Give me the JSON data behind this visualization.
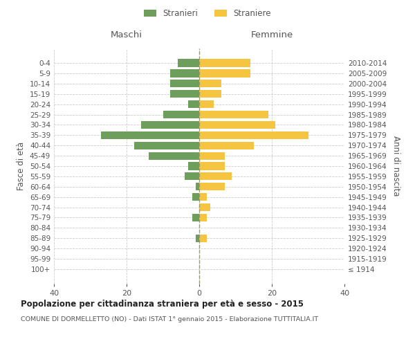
{
  "age_groups": [
    "100+",
    "95-99",
    "90-94",
    "85-89",
    "80-84",
    "75-79",
    "70-74",
    "65-69",
    "60-64",
    "55-59",
    "50-54",
    "45-49",
    "40-44",
    "35-39",
    "30-34",
    "25-29",
    "20-24",
    "15-19",
    "10-14",
    "5-9",
    "0-4"
  ],
  "birth_years": [
    "≤ 1914",
    "1915-1919",
    "1920-1924",
    "1925-1929",
    "1930-1934",
    "1935-1939",
    "1940-1944",
    "1945-1949",
    "1950-1954",
    "1955-1959",
    "1960-1964",
    "1965-1969",
    "1970-1974",
    "1975-1979",
    "1980-1984",
    "1985-1989",
    "1990-1994",
    "1995-1999",
    "2000-2004",
    "2005-2009",
    "2010-2014"
  ],
  "maschi": [
    0,
    0,
    0,
    1,
    0,
    2,
    0,
    2,
    1,
    4,
    3,
    14,
    18,
    27,
    16,
    10,
    3,
    8,
    8,
    8,
    6
  ],
  "femmine": [
    0,
    0,
    0,
    2,
    0,
    2,
    3,
    2,
    7,
    9,
    7,
    7,
    15,
    30,
    21,
    19,
    4,
    6,
    6,
    14,
    14
  ],
  "maschi_color": "#6d9e5c",
  "femmine_color": "#f5c542",
  "bar_height": 0.75,
  "xlim": [
    -40,
    40
  ],
  "xticks": [
    -40,
    -20,
    0,
    20,
    40
  ],
  "xticklabels": [
    "40",
    "20",
    "0",
    "20",
    "40"
  ],
  "title": "Popolazione per cittadinanza straniera per età e sesso - 2015",
  "subtitle": "COMUNE DI DORMELLETTO (NO) - Dati ISTAT 1° gennaio 2015 - Elaborazione TUTTITALIA.IT",
  "ylabel_left": "Fasce di età",
  "ylabel_right": "Anni di nascita",
  "legend_maschi": "Stranieri",
  "legend_femmine": "Straniere",
  "header_left": "Maschi",
  "header_right": "Femmine",
  "grid_color": "#cccccc",
  "text_color": "#555555",
  "bg_color": "#ffffff"
}
